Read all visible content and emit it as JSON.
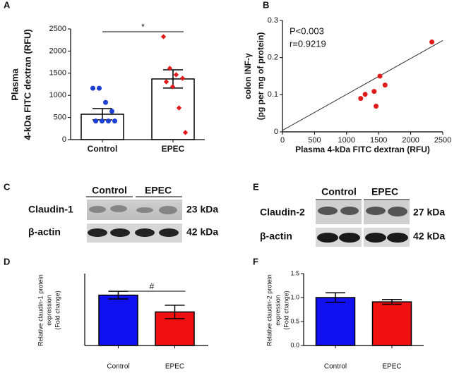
{
  "chart_data": [
    {
      "type": "bar",
      "panel": "A",
      "ylabel": [
        "Plasma",
        "4-kDa FITC dextran (RFU)"
      ],
      "categories": [
        "Control",
        "EPEC"
      ],
      "values": [
        573,
        1370
      ],
      "errors": [
        127,
        206
      ],
      "points": [
        [
          1160,
          1160,
          840,
          640,
          420,
          420,
          420,
          420
        ],
        [
          2325,
          1610,
          1465,
          1385,
          1305,
          1195,
          715,
          160
        ]
      ],
      "point_colors": [
        "#1c3fd6",
        "#e01b1b"
      ],
      "annotation": "*",
      "ylim": [
        0,
        2500
      ],
      "yticks": [
        0,
        500,
        1000,
        1500,
        2000,
        2500
      ]
    },
    {
      "type": "scatter",
      "panel": "B",
      "ylabel": [
        "colon INF-γ",
        "(pg per mg of protein)"
      ],
      "xlabel": "Plasma 4-kDa FITC dextran (RFU)",
      "annotations": [
        "P<0.003",
        "r=0.9219"
      ],
      "x": [
        1220,
        1290,
        1430,
        1520,
        1460,
        1600,
        2330
      ],
      "y": [
        0.09,
        0.101,
        0.109,
        0.15,
        0.069,
        0.126,
        0.242
      ],
      "color": "#e01b1b",
      "fit_line": {
        "x": [
          0,
          2500
        ],
        "y": [
          0.004,
          0.246
        ]
      },
      "xlim": [
        0,
        2500
      ],
      "xticks": [
        0,
        500,
        1000,
        1500,
        2000,
        2500
      ],
      "ylim": [
        0,
        0.3
      ],
      "yticks": [
        0,
        0.1,
        0.2,
        0.3
      ]
    },
    {
      "type": "bar",
      "panel": "D",
      "ylabel": [
        "Relative claudin-1 protein",
        "expression",
        "(Fold change)"
      ],
      "categories": [
        "Control",
        "EPEC"
      ],
      "values": [
        1.05,
        0.7
      ],
      "errors": [
        0.08,
        0.14
      ],
      "colors": [
        "#1010f0",
        "#f01010"
      ],
      "annotation": "#",
      "ylim": [
        0,
        1.5
      ]
    },
    {
      "type": "bar",
      "panel": "F",
      "ylabel": [
        "Relative claudin-2 protein",
        "expression",
        "(Fold change)"
      ],
      "categories": [
        "Control",
        "EPEC"
      ],
      "values": [
        1.0,
        0.91
      ],
      "errors": [
        0.1,
        0.05
      ],
      "colors": [
        "#1010f0",
        "#f01010"
      ],
      "ylim": [
        0,
        1.5
      ],
      "yticks": [
        {
          "value": 0,
          "label": "0.0"
        },
        {
          "value": 0.5,
          "label": "0.5"
        },
        {
          "value": 1.0,
          "label": "1.0"
        },
        {
          "value": 1.5,
          "label": "1.5"
        }
      ]
    }
  ],
  "blots": [
    {
      "panel": "C",
      "groups": [
        "Control",
        "EPEC"
      ],
      "rows": [
        {
          "label": "Claudin-1",
          "size": "23 kDa"
        },
        {
          "label": "β-actin",
          "size": "42 kDa"
        }
      ]
    },
    {
      "panel": "E",
      "groups": [
        "Control",
        "EPEC"
      ],
      "rows": [
        {
          "label": "Claudin-2",
          "size": "27 kDa"
        },
        {
          "label": "β-actin",
          "size": "42 kDa"
        }
      ]
    }
  ]
}
